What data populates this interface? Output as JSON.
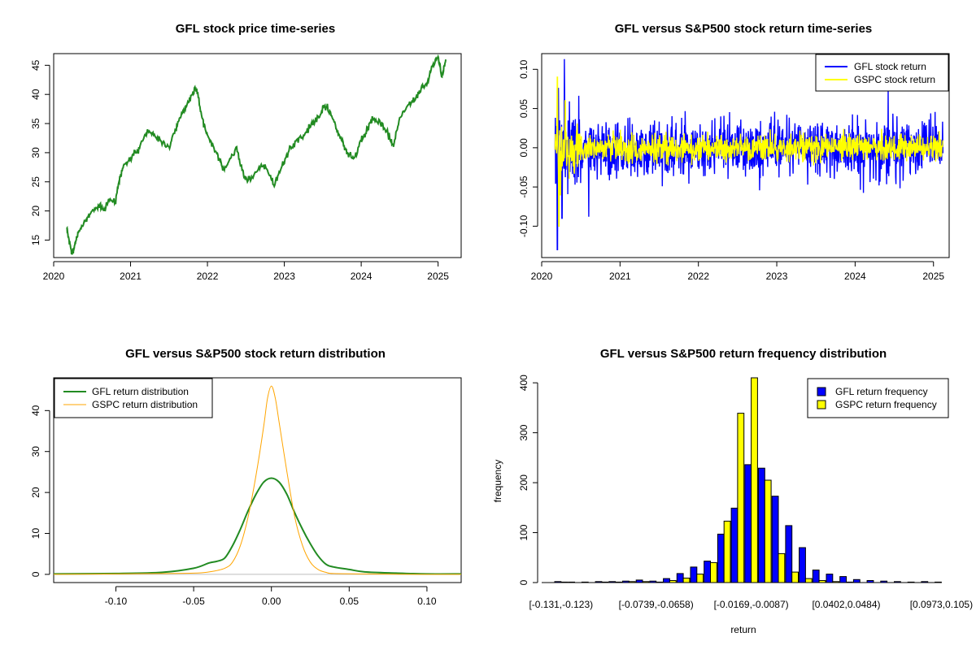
{
  "chart_data": [
    {
      "id": "price",
      "type": "line",
      "title": "GFL stock price time-series",
      "xlabel": "",
      "ylabel": "",
      "xlim": [
        2020.0,
        2025.3
      ],
      "ylim": [
        12,
        47
      ],
      "x_ticks": [
        2020,
        2021,
        2022,
        2023,
        2024,
        2025
      ],
      "x_tick_labels": [
        "2020",
        "2021",
        "2022",
        "2023",
        "2024",
        "2025"
      ],
      "y_ticks": [
        15,
        20,
        25,
        30,
        35,
        40,
        45
      ],
      "y_tick_labels": [
        "15",
        "20",
        "25",
        "30",
        "35",
        "40",
        "45"
      ],
      "color": "#228B22",
      "series": [
        {
          "name": "GFL stock price",
          "x": [
            2020.17,
            2020.2,
            2020.24,
            2020.27,
            2020.3,
            2020.35,
            2020.42,
            2020.5,
            2020.58,
            2020.65,
            2020.72,
            2020.8,
            2020.86,
            2020.92,
            2021.0,
            2021.08,
            2021.15,
            2021.22,
            2021.3,
            2021.4,
            2021.5,
            2021.58,
            2021.65,
            2021.72,
            2021.8,
            2021.86,
            2021.93,
            2022.0,
            2022.08,
            2022.15,
            2022.22,
            2022.3,
            2022.38,
            2022.45,
            2022.52,
            2022.6,
            2022.7,
            2022.78,
            2022.86,
            2022.95,
            2023.05,
            2023.15,
            2023.25,
            2023.35,
            2023.45,
            2023.52,
            2023.6,
            2023.68,
            2023.75,
            2023.82,
            2023.9,
            2024.0,
            2024.08,
            2024.15,
            2024.25,
            2024.35,
            2024.42,
            2024.5,
            2024.6,
            2024.7,
            2024.78,
            2024.86,
            2024.93,
            2025.0,
            2025.05,
            2025.1
          ],
          "y": [
            17,
            15,
            12.5,
            14,
            15.5,
            17,
            18.5,
            20,
            21,
            20,
            22,
            21.5,
            26,
            28,
            29,
            30,
            32,
            34,
            33,
            32,
            31,
            34,
            36,
            38,
            40,
            41,
            36,
            33,
            31,
            29,
            27,
            29,
            31,
            27,
            25,
            26,
            28,
            27,
            24.5,
            27,
            30,
            32,
            33,
            35,
            36,
            38,
            37,
            34,
            32,
            30,
            29,
            32,
            34,
            36,
            35,
            33,
            31,
            36,
            38,
            39,
            41,
            42,
            45,
            46.5,
            43,
            46
          ]
        }
      ]
    },
    {
      "id": "returns",
      "type": "line",
      "title": "GFL versus S&P500 stock return time-series",
      "xlabel": "",
      "ylabel": "",
      "xlim": [
        2020.0,
        2025.2
      ],
      "ylim": [
        -0.14,
        0.12
      ],
      "x_ticks": [
        2020,
        2021,
        2022,
        2023,
        2024,
        2025
      ],
      "x_tick_labels": [
        "2020",
        "2021",
        "2022",
        "2023",
        "2024",
        "2025"
      ],
      "y_ticks": [
        -0.1,
        -0.05,
        0.0,
        0.05,
        0.1
      ],
      "y_tick_labels": [
        "-0.10",
        "-0.05",
        "0.00",
        "0.05",
        "0.10"
      ],
      "legend_position": "top-right",
      "legend": [
        "GFL stock return",
        "GSPC stock return"
      ],
      "series": [
        {
          "name": "GFL stock return",
          "color": "#0000FF",
          "start": 2020.17,
          "end": 2025.12,
          "volatility": 0.025,
          "extremes": [
            {
              "x": 2020.2,
              "y": -0.13
            },
            {
              "x": 2020.29,
              "y": 0.113
            },
            {
              "x": 2020.26,
              "y": -0.09
            },
            {
              "x": 2020.6,
              "y": -0.088
            },
            {
              "x": 2024.42,
              "y": -0.06
            },
            {
              "x": 2024.42,
              "y": 0.075
            }
          ]
        },
        {
          "name": "GSPC stock return",
          "color": "#FFFF00",
          "start": 2020.17,
          "end": 2025.12,
          "volatility": 0.012,
          "extremes": [
            {
              "x": 2020.2,
              "y": 0.09
            },
            {
              "x": 2020.22,
              "y": -0.1
            },
            {
              "x": 2020.24,
              "y": -0.06
            },
            {
              "x": 2020.3,
              "y": 0.06
            }
          ]
        }
      ]
    },
    {
      "id": "density",
      "type": "line",
      "title": "GFL versus S&P500 stock return distribution",
      "xlabel": "",
      "ylabel": "",
      "xlim": [
        -0.14,
        0.122
      ],
      "ylim": [
        -2,
        48
      ],
      "x_ticks": [
        -0.1,
        -0.05,
        0.0,
        0.05,
        0.1
      ],
      "x_tick_labels": [
        "-0.10",
        "-0.05",
        "0.00",
        "0.05",
        "0.10"
      ],
      "y_ticks": [
        0,
        10,
        20,
        30,
        40
      ],
      "y_tick_labels": [
        "0",
        "10",
        "20",
        "30",
        "40"
      ],
      "legend_position": "top-left",
      "legend": [
        "GFL return distribution",
        "GSPC return distribution"
      ],
      "series": [
        {
          "name": "GFL return distribution",
          "color": "#228B22",
          "x": [
            -0.14,
            -0.1,
            -0.07,
            -0.05,
            -0.04,
            -0.035,
            -0.03,
            -0.025,
            -0.02,
            -0.015,
            -0.01,
            -0.005,
            0.0,
            0.005,
            0.01,
            0.015,
            0.02,
            0.025,
            0.03,
            0.035,
            0.04,
            0.05,
            0.06,
            0.08,
            0.1,
            0.122
          ],
          "y": [
            0.1,
            0.2,
            0.5,
            1.5,
            2.8,
            3.2,
            4.0,
            7.0,
            11.0,
            15.5,
            19.5,
            22.5,
            23.5,
            22.5,
            19.5,
            15.0,
            11.0,
            7.5,
            4.5,
            2.5,
            1.8,
            1.2,
            0.6,
            0.3,
            0.1,
            0.1
          ]
        },
        {
          "name": "GSPC return distribution",
          "color": "#FFA500",
          "x": [
            -0.14,
            -0.1,
            -0.07,
            -0.05,
            -0.04,
            -0.03,
            -0.025,
            -0.02,
            -0.015,
            -0.01,
            -0.005,
            -0.0025,
            0.0,
            0.0025,
            0.005,
            0.01,
            0.015,
            0.02,
            0.025,
            0.03,
            0.035,
            0.04,
            0.06,
            0.09,
            0.122
          ],
          "y": [
            0.0,
            0.1,
            0.2,
            0.3,
            0.6,
            1.5,
            3.0,
            7.0,
            14.0,
            24.0,
            36.0,
            43.0,
            46.0,
            43.0,
            37.0,
            25.0,
            14.0,
            7.0,
            3.0,
            1.2,
            0.5,
            0.2,
            0.1,
            0.0,
            0.0
          ]
        }
      ],
      "reference_line": {
        "y": 0,
        "color": "#BEBEBE"
      }
    },
    {
      "id": "frequency",
      "type": "bar",
      "title": "GFL versus S&P500 return frequency distribution",
      "xlabel": "return",
      "ylabel": "frequency",
      "ylim": [
        0,
        410
      ],
      "y_ticks": [
        0,
        100,
        200,
        300,
        400
      ],
      "y_tick_labels": [
        "0",
        "100",
        "200",
        "300",
        "400"
      ],
      "categories": [
        "[-0.131,-0.123)",
        "",
        "",
        "",
        "",
        "",
        "",
        "[-0.0739,-0.0658)",
        "",
        "",
        "",
        "",
        "",
        "",
        "[-0.0169,-0.0087)",
        "",
        "",
        "",
        "",
        "",
        "",
        "[0.0402,0.0484)",
        "",
        "",
        "",
        "",
        "",
        "",
        "[0.0973,0.105)"
      ],
      "shown_category_labels": [
        "[-0.131,-0.123)",
        "[-0.0739,-0.0658)",
        "[-0.0169,-0.0087)",
        "[0.0402,0.0484)",
        "[0.0973,0.105)"
      ],
      "legend_position": "top-right",
      "legend": [
        "GFL return frequency",
        "GSPC return frequency"
      ],
      "series": [
        {
          "name": "GFL return frequency",
          "color": "#0000FF",
          "values": [
            2,
            1,
            1,
            2,
            2,
            3,
            5,
            3,
            8,
            18,
            31,
            43,
            97,
            149,
            236,
            229,
            173,
            114,
            70,
            25,
            17,
            12,
            6,
            4,
            3,
            2,
            1,
            2,
            1
          ]
        },
        {
          "name": "GSPC return frequency",
          "color": "#FFFF00",
          "values": [
            1,
            0,
            0,
            1,
            1,
            2,
            2,
            1,
            4,
            9,
            17,
            40,
            123,
            339,
            410,
            205,
            58,
            21,
            8,
            4,
            2,
            1,
            0,
            0,
            0,
            0,
            0,
            0,
            0
          ]
        }
      ]
    }
  ]
}
